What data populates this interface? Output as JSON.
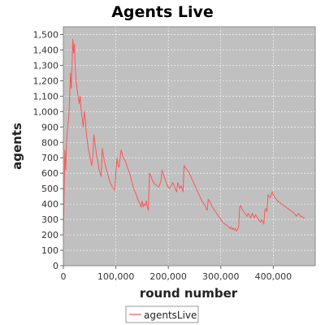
{
  "chart_data": {
    "type": "line",
    "title": "Agents Live",
    "xlabel": "round number",
    "ylabel": "agents",
    "xlim": [
      0,
      480000
    ],
    "ylim": [
      0,
      1550
    ],
    "x_ticks": [
      0,
      100000,
      200000,
      300000,
      400000
    ],
    "x_tick_labels": [
      "0",
      "100,000",
      "200,000",
      "300,000",
      "400,000"
    ],
    "y_ticks": [
      0,
      100,
      200,
      300,
      400,
      500,
      600,
      700,
      800,
      900,
      1000,
      1100,
      1200,
      1300,
      1400,
      1500
    ],
    "y_tick_labels": [
      "0",
      "100",
      "200",
      "300",
      "400",
      "500",
      "600",
      "700",
      "800",
      "900",
      "1,000",
      "1,100",
      "1,200",
      "1,300",
      "1,400",
      "1,500"
    ],
    "grid": true,
    "legend_position": "bottom",
    "plot_background": "#c0c0c0",
    "series": [
      {
        "name": "agentsLive",
        "color": "#ff5555",
        "x": [
          0,
          1500,
          3000,
          4500,
          6000,
          8000,
          10000,
          12000,
          13500,
          15000,
          16500,
          18000,
          19500,
          21000,
          22500,
          24000,
          26000,
          28000,
          30000,
          32000,
          34000,
          36000,
          38000,
          40000,
          42000,
          44000,
          46000,
          48000,
          50000,
          52000,
          54000,
          56000,
          58000,
          60000,
          62000,
          64000,
          66000,
          68000,
          70000,
          72000,
          74000,
          76000,
          78000,
          80000,
          84000,
          88000,
          92000,
          95000,
          98000,
          100000,
          102000,
          104000,
          106000,
          108000,
          110000,
          112000,
          114000,
          116000,
          118000,
          120000,
          122000,
          124000,
          126000,
          128000,
          130000,
          134000,
          138000,
          142000,
          146000,
          148000,
          150000,
          152000,
          154000,
          156000,
          158000,
          160000,
          162000,
          164000,
          166000,
          168000,
          170000,
          174000,
          178000,
          182000,
          186000,
          188000,
          190000,
          192000,
          194000,
          198000,
          202000,
          206000,
          208000,
          210000,
          212000,
          214000,
          216000,
          218000,
          220000,
          222000,
          224000,
          226000,
          228000,
          230000,
          232000,
          236000,
          240000,
          244000,
          248000,
          252000,
          256000,
          260000,
          264000,
          268000,
          270000,
          272000,
          274000,
          276000,
          280000,
          284000,
          288000,
          292000,
          296000,
          300000,
          304000,
          308000,
          312000,
          316000,
          318000,
          320000,
          322000,
          324000,
          326000,
          328000,
          330000,
          332000,
          334000,
          336000,
          338000,
          340000,
          342000,
          344000,
          346000,
          348000,
          350000,
          352000,
          354000,
          356000,
          358000,
          360000,
          362000,
          364000,
          366000,
          368000,
          370000,
          372000,
          374000,
          376000,
          378000,
          380000,
          382000,
          384000,
          386000,
          388000,
          390000,
          392000,
          394000,
          396000,
          398000,
          400000,
          402000,
          404000,
          406000,
          408000,
          412000,
          416000,
          420000,
          424000,
          428000,
          432000,
          436000,
          440000,
          442000,
          444000,
          446000,
          448000,
          450000,
          452000,
          454000,
          456000,
          458000,
          460000
        ],
        "y": [
          150,
          500,
          750,
          620,
          800,
          900,
          950,
          1100,
          1250,
          1150,
          1300,
          1470,
          1380,
          1440,
          1300,
          1200,
          1150,
          1100,
          1050,
          1100,
          1000,
          950,
          900,
          1000,
          950,
          850,
          800,
          750,
          720,
          680,
          650,
          700,
          850,
          800,
          750,
          700,
          680,
          620,
          600,
          580,
          760,
          720,
          680,
          650,
          600,
          550,
          520,
          500,
          490,
          600,
          700,
          650,
          640,
          700,
          750,
          730,
          700,
          690,
          680,
          660,
          640,
          620,
          600,
          580,
          550,
          500,
          470,
          430,
          400,
          380,
          420,
          380,
          400,
          390,
          420,
          380,
          360,
          600,
          590,
          570,
          550,
          530,
          520,
          510,
          550,
          620,
          600,
          580,
          560,
          520,
          500,
          520,
          540,
          530,
          510,
          490,
          480,
          540,
          520,
          500,
          520,
          500,
          480,
          650,
          640,
          620,
          600,
          570,
          540,
          510,
          480,
          450,
          420,
          400,
          390,
          370,
          360,
          430,
          410,
          380,
          360,
          340,
          320,
          300,
          280,
          270,
          260,
          250,
          240,
          250,
          235,
          245,
          230,
          240,
          225,
          235,
          250,
          380,
          390,
          370,
          360,
          350,
          340,
          330,
          320,
          340,
          330,
          310,
          320,
          340,
          320,
          310,
          330,
          320,
          310,
          300,
          290,
          280,
          300,
          290,
          270,
          360,
          370,
          350,
          460,
          450,
          440,
          460,
          480,
          460,
          450,
          440,
          430,
          420,
          410,
          400,
          390,
          380,
          370,
          360,
          350,
          340,
          330,
          320,
          330,
          340,
          330,
          320,
          320,
          315,
          310,
          310
        ]
      }
    ]
  }
}
